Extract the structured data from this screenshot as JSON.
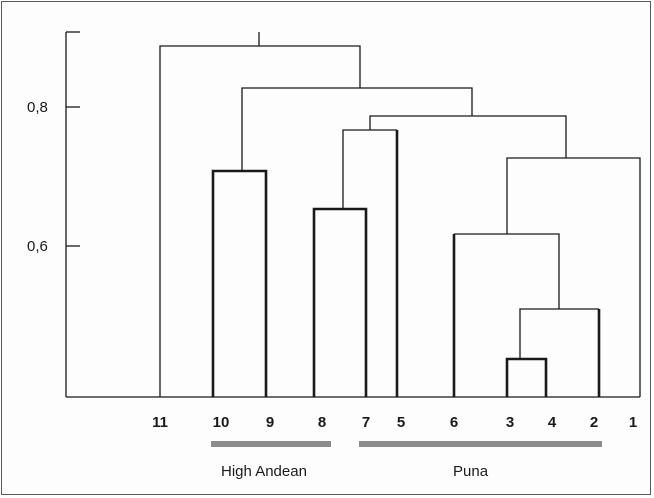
{
  "diagram": {
    "type": "dendrogram",
    "axis": {
      "ticks": [
        {
          "value": 0.8,
          "label": "0,8"
        },
        {
          "value": 0.6,
          "label": "0,6"
        }
      ]
    },
    "leaves": [
      "11",
      "10",
      "9",
      "8",
      "7",
      "5",
      "6",
      "3",
      "4",
      "2",
      "1"
    ],
    "groups": [
      {
        "label": "High Andean",
        "color": "#8c8c8c"
      },
      {
        "label": "Puna",
        "color": "#8c8c8c"
      }
    ],
    "line_color": "#1a1a1a"
  }
}
